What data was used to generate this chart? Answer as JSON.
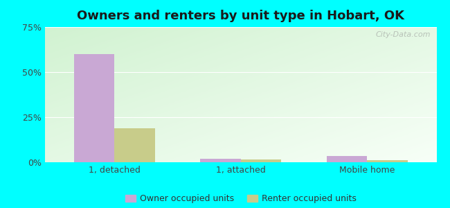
{
  "title": "Owners and renters by unit type in Hobart, OK",
  "categories": [
    "1, detached",
    "1, attached",
    "Mobile home"
  ],
  "owner_values": [
    60.0,
    2.0,
    3.5
  ],
  "renter_values": [
    19.0,
    1.5,
    1.0
  ],
  "owner_color": "#c9a8d4",
  "renter_color": "#c8cc8a",
  "ylim": [
    0,
    75
  ],
  "yticks": [
    0,
    25,
    50,
    75
  ],
  "ytick_labels": [
    "0%",
    "25%",
    "50%",
    "75%"
  ],
  "bg_topleft": [
    0.82,
    0.95,
    0.82
  ],
  "bg_bottomright": [
    0.97,
    1.0,
    0.97
  ],
  "outer_background": "#00ffff",
  "bar_width": 0.32,
  "watermark": "City-Data.com",
  "legend_labels": [
    "Owner occupied units",
    "Renter occupied units"
  ],
  "title_fontsize": 13,
  "tick_fontsize": 9,
  "legend_fontsize": 9
}
